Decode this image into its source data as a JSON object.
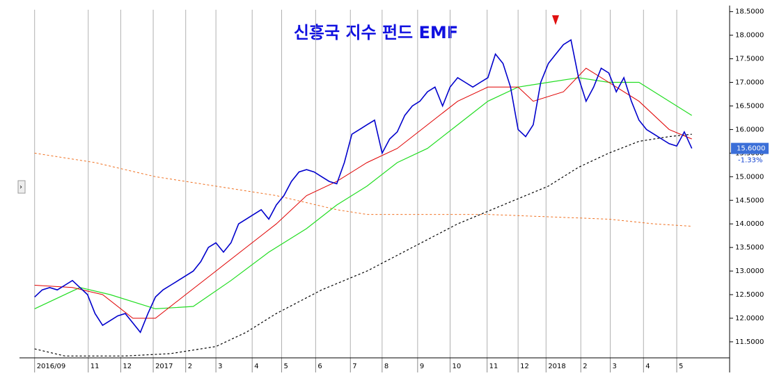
{
  "chart_data": {
    "type": "line",
    "title": "신흥국 지수 펀드 EMF",
    "xlim": [
      -2,
      92
    ],
    "ylim": [
      11.16,
      18.54
    ],
    "yticks": [
      {
        "value": 11.5,
        "label": "11.5000"
      },
      {
        "value": 12,
        "label": "12.0000"
      },
      {
        "value": 12.5,
        "label": "12.5000"
      },
      {
        "value": 13,
        "label": "13.0000"
      },
      {
        "value": 13.5,
        "label": "13.5000"
      },
      {
        "value": 14,
        "label": "14.0000"
      },
      {
        "value": 14.5,
        "label": "14.5000"
      },
      {
        "value": 15,
        "label": "15.0000"
      },
      {
        "value": 15.5,
        "label": "15.5000"
      },
      {
        "value": 16,
        "label": "16.0000"
      },
      {
        "value": 16.5,
        "label": "16.5000"
      },
      {
        "value": 17,
        "label": "17.0000"
      },
      {
        "value": 17.5,
        "label": "17.5000"
      },
      {
        "value": 18,
        "label": "18.0000"
      },
      {
        "value": 18.5,
        "label": "18.5000"
      }
    ],
    "xticks": [
      {
        "value": 0,
        "label": "2016/09"
      },
      {
        "value": 7.1,
        "label": "11"
      },
      {
        "value": 11.4,
        "label": "12"
      },
      {
        "value": 15.7,
        "label": "2017"
      },
      {
        "value": 20,
        "label": "2"
      },
      {
        "value": 24,
        "label": "3"
      },
      {
        "value": 28.8,
        "label": "4"
      },
      {
        "value": 32.7,
        "label": "5"
      },
      {
        "value": 37.2,
        "label": "6"
      },
      {
        "value": 41.8,
        "label": "7"
      },
      {
        "value": 46,
        "label": "8"
      },
      {
        "value": 50.7,
        "label": "9"
      },
      {
        "value": 55,
        "label": "10"
      },
      {
        "value": 59.9,
        "label": "11"
      },
      {
        "value": 64,
        "label": "12"
      },
      {
        "value": 67.7,
        "label": "2018"
      },
      {
        "value": 72.3,
        "label": "2"
      },
      {
        "value": 76.2,
        "label": "3"
      },
      {
        "value": 80.6,
        "label": "4"
      },
      {
        "value": 85,
        "label": "5"
      }
    ],
    "grid": true,
    "last_value": {
      "value": 15.6,
      "label": "15.6000"
    },
    "change_label": "-1.33%",
    "series": [
      {
        "color": "#0000cc",
        "width": 1.6,
        "dash": false,
        "values": [
          12.45,
          12.6,
          12.65,
          12.6,
          12.7,
          12.8,
          12.65,
          12.5,
          12.1,
          11.85,
          11.95,
          12.05,
          12.1,
          11.9,
          11.7,
          12.1,
          12.45,
          12.6,
          12.7,
          12.8,
          12.9,
          13.0,
          13.2,
          13.5,
          13.6,
          13.4,
          13.6,
          14.0,
          14.1,
          14.2,
          14.3,
          14.1,
          14.4,
          14.6,
          14.9,
          15.1,
          15.15,
          15.1,
          15.0,
          14.9,
          14.85,
          15.3,
          15.9,
          16.0,
          16.1,
          16.2,
          15.5,
          15.8,
          15.95,
          16.3,
          16.5,
          16.6,
          16.8,
          16.9,
          16.5,
          16.9,
          17.1,
          17.0,
          16.9,
          17.0,
          17.1,
          17.6,
          17.4,
          16.9,
          16.0,
          15.85,
          16.1,
          17.0,
          17.4,
          17.6,
          17.8,
          17.9,
          17.1,
          16.6,
          16.9,
          17.3,
          17.2,
          16.8,
          17.1,
          16.6,
          16.2,
          16.0,
          15.9,
          15.8,
          15.7,
          15.65,
          15.95,
          15.6
        ]
      },
      {
        "color": "#e00000",
        "width": 1,
        "dash": false,
        "x": [
          0,
          5,
          9,
          13,
          16,
          20,
          24,
          28,
          32,
          36,
          40,
          44,
          48,
          52,
          56,
          60,
          64,
          66,
          70,
          73,
          76,
          80,
          84,
          87
        ],
        "values": [
          12.7,
          12.65,
          12.5,
          12.0,
          12.0,
          12.5,
          13.0,
          13.5,
          14.0,
          14.6,
          14.9,
          15.3,
          15.6,
          16.1,
          16.6,
          16.9,
          16.9,
          16.6,
          16.8,
          17.3,
          17.0,
          16.6,
          16.0,
          15.8
        ]
      },
      {
        "color": "#22dd22",
        "width": 1.2,
        "dash": false,
        "x": [
          0,
          6,
          10,
          16,
          21,
          26,
          31,
          36,
          40,
          44,
          48,
          52,
          56,
          60,
          64,
          68,
          72,
          76,
          80,
          84,
          87
        ],
        "values": [
          12.2,
          12.65,
          12.5,
          12.2,
          12.25,
          12.8,
          13.4,
          13.9,
          14.4,
          14.8,
          15.3,
          15.6,
          16.1,
          16.6,
          16.9,
          17.0,
          17.1,
          17.0,
          17.0,
          16.6,
          16.3
        ]
      },
      {
        "color": "#000000",
        "width": 1.2,
        "dash": true,
        "x": [
          0,
          4,
          12,
          18,
          24,
          28,
          32,
          38,
          44,
          50,
          56,
          62,
          68,
          72,
          76,
          80,
          84,
          87
        ],
        "values": [
          11.35,
          11.2,
          11.2,
          11.25,
          11.4,
          11.7,
          12.1,
          12.6,
          13.0,
          13.5,
          14.0,
          14.4,
          14.8,
          15.2,
          15.5,
          15.75,
          15.85,
          15.9
        ]
      },
      {
        "color": "#f07020",
        "width": 1,
        "dash": true,
        "x": [
          0,
          8,
          16,
          24,
          32,
          40,
          44,
          52,
          60,
          68,
          76,
          82,
          87
        ],
        "values": [
          15.5,
          15.3,
          15.0,
          14.8,
          14.6,
          14.3,
          14.2,
          14.2,
          14.2,
          14.15,
          14.1,
          14.0,
          13.95
        ]
      }
    ]
  }
}
